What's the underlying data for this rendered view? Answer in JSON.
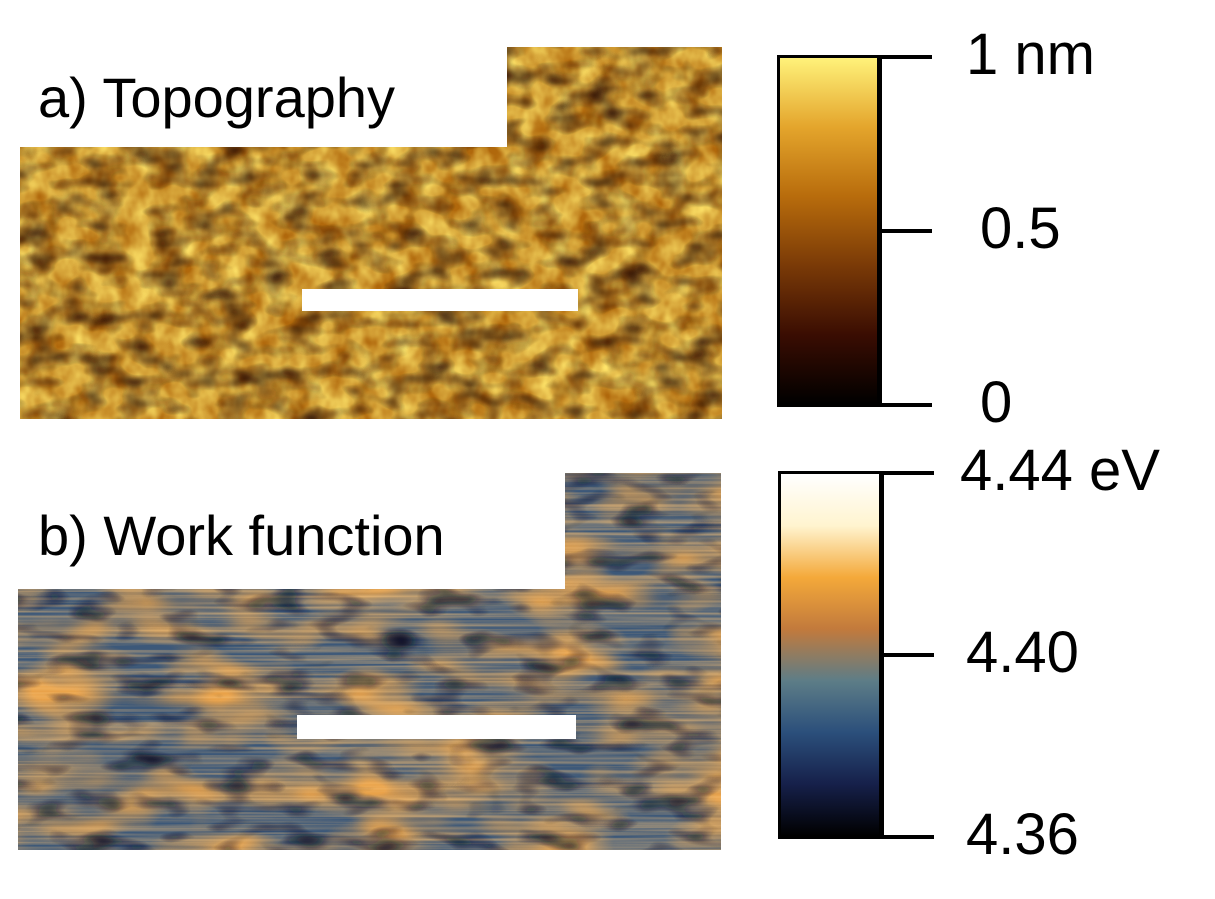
{
  "panels": {
    "topography": {
      "label": "a) Topography",
      "colorbar": {
        "stops": [
          "#000000",
          "#3a0d02",
          "#7a3a07",
          "#b86c0c",
          "#e4a52c",
          "#fff27a"
        ],
        "ticks": [
          {
            "value": 1,
            "text": "1 nm"
          },
          {
            "value": 0.5,
            "text": "0.5"
          },
          {
            "value": 0,
            "text": "0"
          }
        ],
        "range": [
          0,
          1
        ]
      }
    },
    "work_function": {
      "label": "b) Work function",
      "colorbar": {
        "stops": [
          "#000000",
          "#16204a",
          "#2b4f7b",
          "#5d7d87",
          "#c27a3c",
          "#f4a93a",
          "#fff4cf",
          "#ffffff"
        ],
        "ticks": [
          {
            "value": 4.44,
            "text": "4.44 eV"
          },
          {
            "value": 4.4,
            "text": "4.40"
          },
          {
            "value": 4.36,
            "text": "4.36"
          }
        ],
        "range": [
          4.36,
          4.44
        ]
      }
    }
  }
}
